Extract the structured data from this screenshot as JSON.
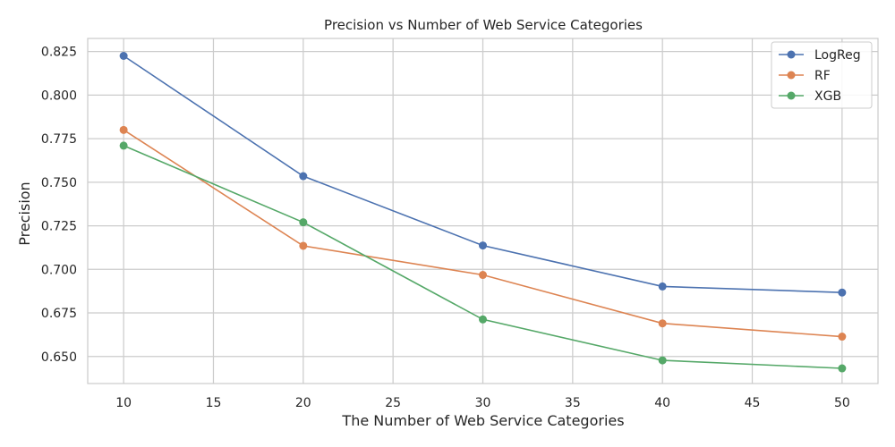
{
  "chart_data": {
    "type": "line",
    "title": "Precision vs Number of Web Service Categories",
    "xlabel": "The Number of Web Service Categories",
    "ylabel": "Precision",
    "x": [
      10,
      20,
      30,
      40,
      50
    ],
    "xlim": [
      8,
      52
    ],
    "ylim": [
      0.6345,
      0.8325
    ],
    "xticks": [
      10,
      15,
      20,
      25,
      30,
      35,
      40,
      45,
      50
    ],
    "yticks": [
      0.65,
      0.675,
      0.7,
      0.725,
      0.75,
      0.775,
      0.8,
      0.825
    ],
    "ytick_labels": [
      "0.650",
      "0.675",
      "0.700",
      "0.725",
      "0.750",
      "0.775",
      "0.800",
      "0.825"
    ],
    "grid": true,
    "legend_position": "top-right",
    "series": [
      {
        "name": "LogReg",
        "color": "#4c72b0",
        "values": [
          0.8225,
          0.7535,
          0.7137,
          0.6902,
          0.6867
        ]
      },
      {
        "name": "RF",
        "color": "#dd8452",
        "values": [
          0.78,
          0.7135,
          0.6968,
          0.669,
          0.6614
        ]
      },
      {
        "name": "XGB",
        "color": "#55a868",
        "values": [
          0.771,
          0.727,
          0.6713,
          0.6478,
          0.6432
        ]
      }
    ]
  }
}
